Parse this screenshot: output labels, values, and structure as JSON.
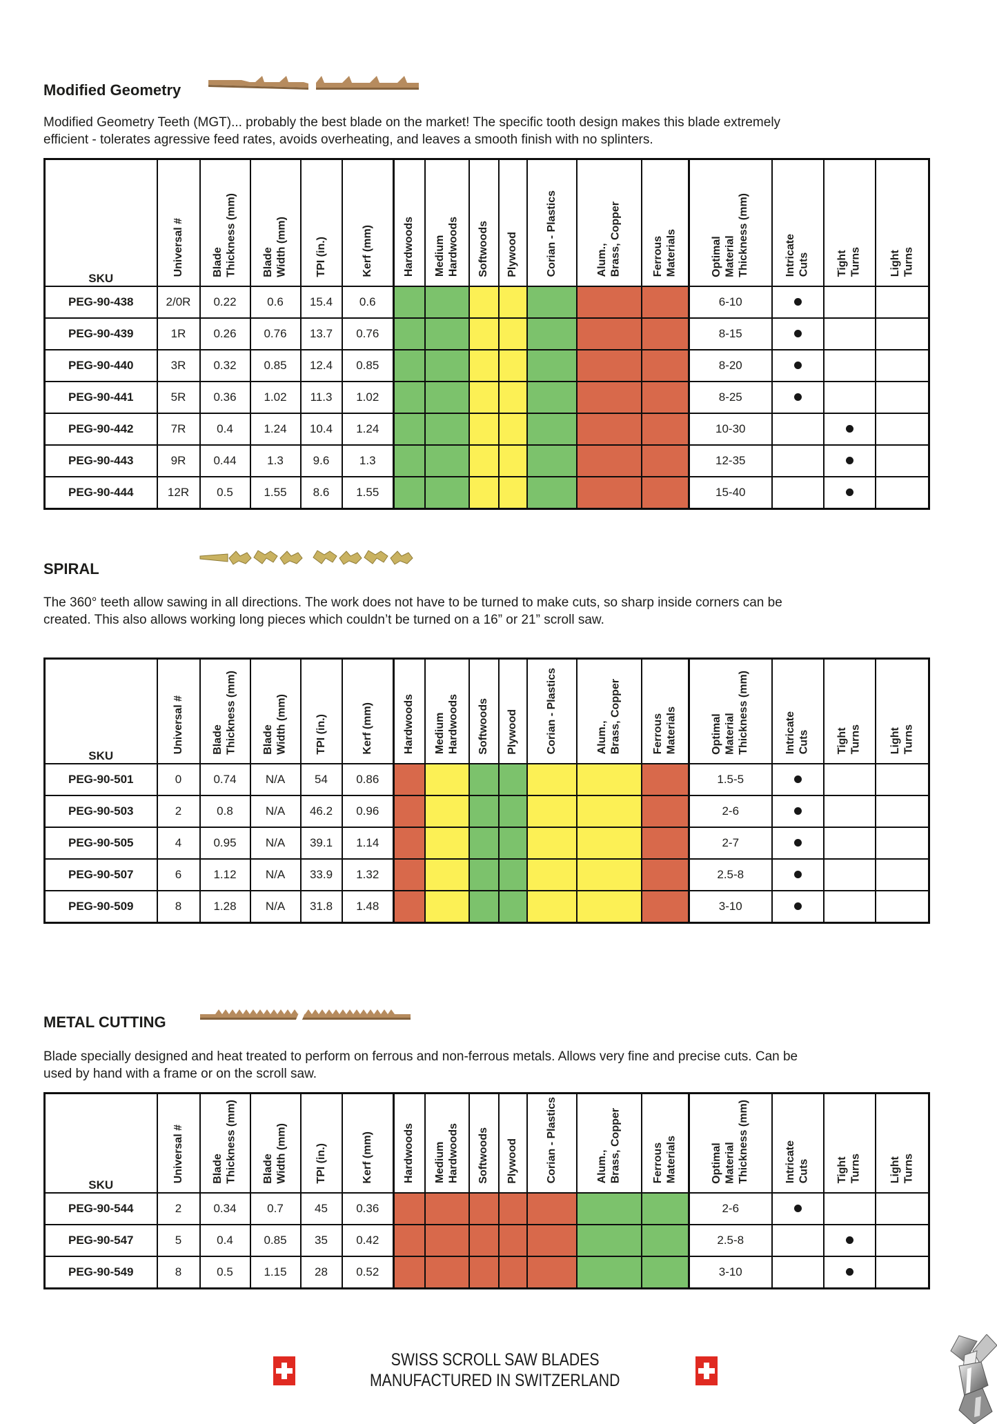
{
  "legend_colors": {
    "good": "#7cc26c",
    "ok": "#fcf055",
    "bad": "#d8694b"
  },
  "columns": [
    "SKU",
    "Universal #",
    "Blade\nThickness (mm)",
    "Blade\nWidth (mm)",
    "TPI (in.)",
    "Kerf (mm)",
    "Hardwoods",
    "Medium\nHardwoods",
    "Softwoods",
    "Plywood",
    "Corian - Plastics",
    "Alum.,\nBrass, Copper",
    "Ferrous\nMaterials",
    "Optimal\nMaterial\nThickness (mm)",
    "Intricate\nCuts",
    "Tight\nTurns",
    "Light\nTurns"
  ],
  "sections": [
    {
      "title": "Modified Geometry",
      "description": "Modified Geometry Teeth (MGT)... probably the best blade on the market! The specific tooth design makes this blade extremely\nefficient - tolerates agressive feed rates, avoids overheating, and leaves a smooth finish with no splinters.",
      "blade_icon": "straight-mgt-blade",
      "material_ratings": [
        "good",
        "good",
        "ok",
        "ok",
        "good",
        "bad",
        "bad"
      ],
      "rows": [
        {
          "sku": "PEG-90-438",
          "universal": "2/0R",
          "blade_thickness": "0.22",
          "blade_width": "0.6",
          "tpi": "15.4",
          "kerf": "0.6",
          "optimal_thickness": "6-10",
          "intricate_cuts": true,
          "tight_turns": false,
          "light_turns": false
        },
        {
          "sku": "PEG-90-439",
          "universal": "1R",
          "blade_thickness": "0.26",
          "blade_width": "0.76",
          "tpi": "13.7",
          "kerf": "0.76",
          "optimal_thickness": "8-15",
          "intricate_cuts": true,
          "tight_turns": false,
          "light_turns": false
        },
        {
          "sku": "PEG-90-440",
          "universal": "3R",
          "blade_thickness": "0.32",
          "blade_width": "0.85",
          "tpi": "12.4",
          "kerf": "0.85",
          "optimal_thickness": "8-20",
          "intricate_cuts": true,
          "tight_turns": false,
          "light_turns": false
        },
        {
          "sku": "PEG-90-441",
          "universal": "5R",
          "blade_thickness": "0.36",
          "blade_width": "1.02",
          "tpi": "11.3",
          "kerf": "1.02",
          "optimal_thickness": "8-25",
          "intricate_cuts": true,
          "tight_turns": false,
          "light_turns": false
        },
        {
          "sku": "PEG-90-442",
          "universal": "7R",
          "blade_thickness": "0.4",
          "blade_width": "1.24",
          "tpi": "10.4",
          "kerf": "1.24",
          "optimal_thickness": "10-30",
          "intricate_cuts": false,
          "tight_turns": true,
          "light_turns": false
        },
        {
          "sku": "PEG-90-443",
          "universal": "9R",
          "blade_thickness": "0.44",
          "blade_width": "1.3",
          "tpi": "9.6",
          "kerf": "1.3",
          "optimal_thickness": "12-35",
          "intricate_cuts": false,
          "tight_turns": true,
          "light_turns": false
        },
        {
          "sku": "PEG-90-444",
          "universal": "12R",
          "blade_thickness": "0.5",
          "blade_width": "1.55",
          "tpi": "8.6",
          "kerf": "1.55",
          "optimal_thickness": "15-40",
          "intricate_cuts": false,
          "tight_turns": true,
          "light_turns": false
        }
      ]
    },
    {
      "title": "SPIRAL",
      "description": "The 360° teeth allow sawing in all directions. The work does not have to be turned to make cuts, so sharp inside corners can be\ncreated. This also allows working long pieces which couldn’t be turned on a 16” or 21” scroll saw.",
      "blade_icon": "spiral-blade",
      "material_ratings": [
        "bad",
        "ok",
        "good",
        "good",
        "ok",
        "ok",
        "bad"
      ],
      "rows": [
        {
          "sku": "PEG-90-501",
          "universal": "0",
          "blade_thickness": "0.74",
          "blade_width": "N/A",
          "tpi": "54",
          "kerf": "0.86",
          "optimal_thickness": "1.5-5",
          "intricate_cuts": true,
          "tight_turns": false,
          "light_turns": false
        },
        {
          "sku": "PEG-90-503",
          "universal": "2",
          "blade_thickness": "0.8",
          "blade_width": "N/A",
          "tpi": "46.2",
          "kerf": "0.96",
          "optimal_thickness": "2-6",
          "intricate_cuts": true,
          "tight_turns": false,
          "light_turns": false
        },
        {
          "sku": "PEG-90-505",
          "universal": "4",
          "blade_thickness": "0.95",
          "blade_width": "N/A",
          "tpi": "39.1",
          "kerf": "1.14",
          "optimal_thickness": "2-7",
          "intricate_cuts": true,
          "tight_turns": false,
          "light_turns": false
        },
        {
          "sku": "PEG-90-507",
          "universal": "6",
          "blade_thickness": "1.12",
          "blade_width": "N/A",
          "tpi": "33.9",
          "kerf": "1.32",
          "optimal_thickness": "2.5-8",
          "intricate_cuts": true,
          "tight_turns": false,
          "light_turns": false
        },
        {
          "sku": "PEG-90-509",
          "universal": "8",
          "blade_thickness": "1.28",
          "blade_width": "N/A",
          "tpi": "31.8",
          "kerf": "1.48",
          "optimal_thickness": "3-10",
          "intricate_cuts": true,
          "tight_turns": false,
          "light_turns": false
        }
      ]
    },
    {
      "title": "METAL CUTTING",
      "description": "Blade specially designed and heat treated to perform on ferrous and non-ferrous metals. Allows very fine and precise cuts. Can be\nused by hand with a frame or on the scroll saw.",
      "blade_icon": "metal-cutting-blade",
      "material_ratings": [
        "bad",
        "bad",
        "bad",
        "bad",
        "bad",
        "good",
        "good"
      ],
      "rows": [
        {
          "sku": "PEG-90-544",
          "universal": "2",
          "blade_thickness": "0.34",
          "blade_width": "0.7",
          "tpi": "45",
          "kerf": "0.36",
          "optimal_thickness": "2-6",
          "intricate_cuts": true,
          "tight_turns": false,
          "light_turns": false
        },
        {
          "sku": "PEG-90-547",
          "universal": "5",
          "blade_thickness": "0.4",
          "blade_width": "0.85",
          "tpi": "35",
          "kerf": "0.42",
          "optimal_thickness": "2.5-8",
          "intricate_cuts": false,
          "tight_turns": true,
          "light_turns": false
        },
        {
          "sku": "PEG-90-549",
          "universal": "8",
          "blade_thickness": "0.5",
          "blade_width": "1.15",
          "tpi": "28",
          "kerf": "0.52",
          "optimal_thickness": "3-10",
          "intricate_cuts": false,
          "tight_turns": true,
          "light_turns": false
        }
      ]
    }
  ],
  "footer": {
    "line1": "SWISS SCROLL SAW BLADES",
    "line2": "MANUFACTURED IN SWITZERLAND",
    "flag_color": "#e02a21"
  }
}
